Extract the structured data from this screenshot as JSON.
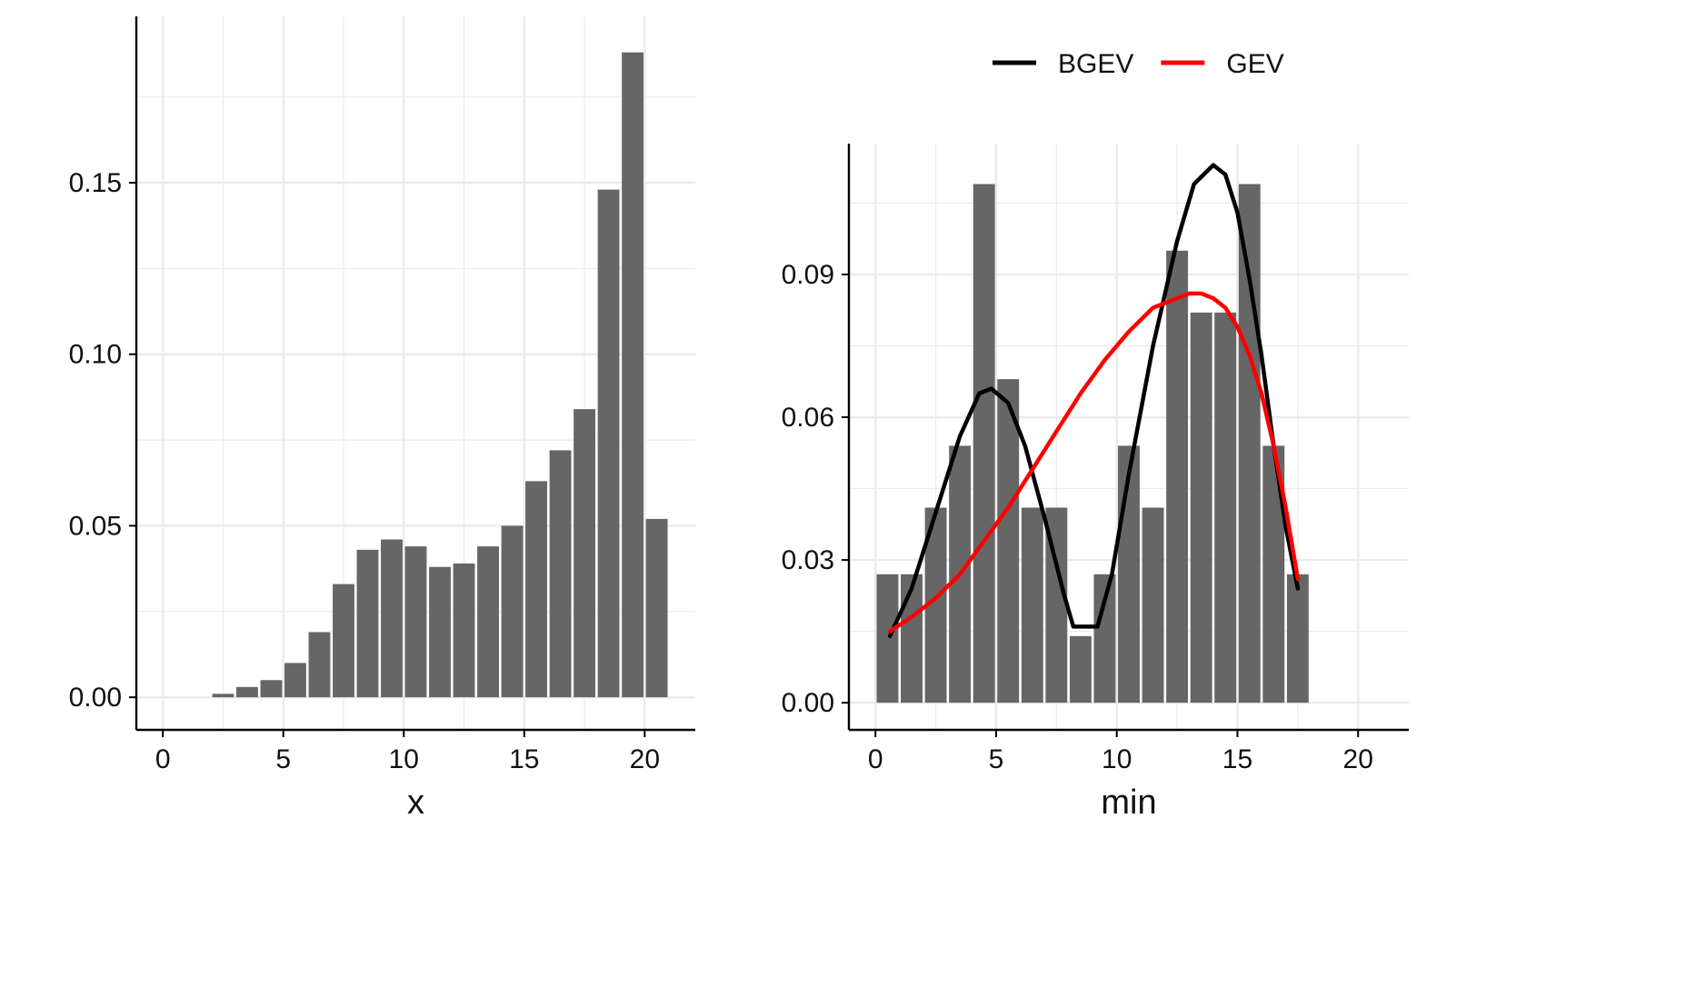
{
  "colors": {
    "bar": "#666666",
    "grid": "#ebebeb",
    "axis": "#000000",
    "bgev": "#000000",
    "gev": "#ff0000"
  },
  "chart_data": [
    {
      "type": "bar",
      "title": "",
      "xlabel": "x",
      "ylabel": "",
      "xlim": [
        -1.1,
        22.1
      ],
      "ylim": [
        -0.0095,
        0.1985
      ],
      "xticks": [
        0,
        5,
        10,
        15,
        20
      ],
      "xtick_labels": [
        "0",
        "5",
        "10",
        "15",
        "20"
      ],
      "yticks": [
        0,
        0.05,
        0.1,
        0.15
      ],
      "ytick_labels": [
        "0.00",
        "0.05",
        "0.10",
        "0.15"
      ],
      "x": [
        3,
        4,
        5,
        6,
        7,
        8,
        9,
        10,
        11,
        12,
        13,
        14,
        15,
        16,
        17,
        18,
        19,
        20,
        21
      ],
      "values": [
        0.001,
        0.003,
        0.005,
        0.01,
        0.019,
        0.033,
        0.043,
        0.046,
        0.044,
        0.038,
        0.039,
        0.044,
        0.05,
        0.063,
        0.072,
        0.084,
        0.148,
        0.188,
        0.052
      ],
      "grid": true
    },
    {
      "type": "bar",
      "title": "",
      "xlabel": "min",
      "ylabel": "",
      "xlim": [
        -1.1,
        22.1
      ],
      "ylim": [
        -0.0057,
        0.1175
      ],
      "xticks": [
        0,
        5,
        10,
        15,
        20
      ],
      "xtick_labels": [
        "0",
        "5",
        "10",
        "15",
        "20"
      ],
      "yticks": [
        0,
        0.03,
        0.06,
        0.09
      ],
      "ytick_labels": [
        "0.00",
        "0.03",
        "0.06",
        "0.09"
      ],
      "x": [
        1,
        2,
        3,
        4,
        5,
        6,
        7,
        8,
        9,
        10,
        11,
        12,
        13,
        14,
        15,
        16,
        17,
        18
      ],
      "values": [
        0.027,
        0.027,
        0.041,
        0.054,
        0.109,
        0.068,
        0.041,
        0.041,
        0.014,
        0.027,
        0.054,
        0.041,
        0.095,
        0.082,
        0.082,
        0.109,
        0.054,
        0.027
      ],
      "legend": {
        "position": "top",
        "entries": [
          "BGEV",
          "GEV"
        ]
      },
      "series": [
        {
          "name": "BGEV",
          "type": "line",
          "x": [
            0.6,
            1.5,
            2.5,
            3.5,
            4.3,
            4.8,
            5.5,
            6.2,
            7.0,
            7.8,
            8.2,
            9.2,
            9.8,
            10.5,
            11.5,
            12.5,
            13.2,
            14.0,
            14.5,
            15.0,
            15.5,
            16.0,
            16.5,
            17.0,
            17.5
          ],
          "y": [
            0.014,
            0.024,
            0.04,
            0.056,
            0.065,
            0.066,
            0.063,
            0.054,
            0.039,
            0.023,
            0.016,
            0.016,
            0.027,
            0.048,
            0.075,
            0.097,
            0.109,
            0.113,
            0.111,
            0.103,
            0.089,
            0.073,
            0.054,
            0.037,
            0.024
          ]
        },
        {
          "name": "GEV",
          "type": "line",
          "x": [
            0.6,
            1.5,
            2.5,
            3.5,
            4.5,
            5.5,
            6.5,
            7.5,
            8.5,
            9.5,
            10.5,
            11.5,
            12.5,
            13.0,
            13.5,
            14.0,
            14.5,
            15.0,
            15.5,
            16.0,
            16.5,
            17.0,
            17.5
          ],
          "y": [
            0.015,
            0.018,
            0.022,
            0.027,
            0.034,
            0.041,
            0.049,
            0.057,
            0.065,
            0.072,
            0.078,
            0.083,
            0.085,
            0.086,
            0.086,
            0.085,
            0.083,
            0.079,
            0.073,
            0.065,
            0.054,
            0.041,
            0.026
          ]
        }
      ],
      "grid": true
    }
  ]
}
